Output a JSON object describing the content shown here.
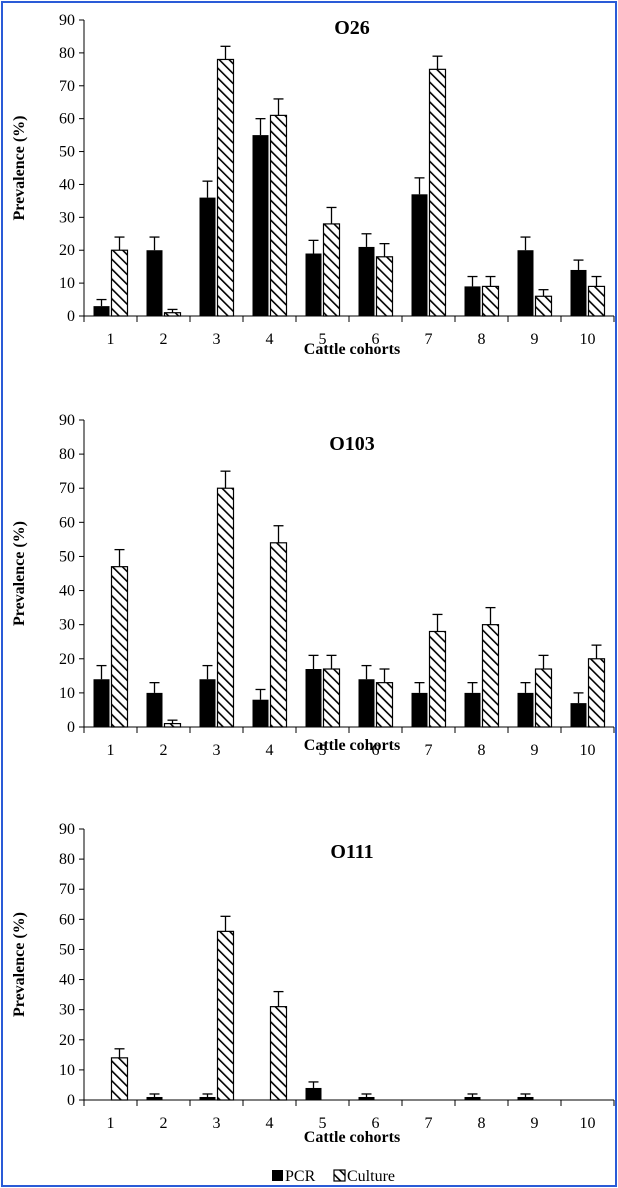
{
  "colors": {
    "frame": "#2a5bd7",
    "pcr_fill": "#000000",
    "culture_stroke": "#000000",
    "background": "#ffffff"
  },
  "legend": {
    "items": [
      {
        "label": "PCR",
        "pattern": "solid"
      },
      {
        "label": "Culture",
        "pattern": "hatched"
      }
    ]
  },
  "chart_data": [
    {
      "type": "bar",
      "title": "O26",
      "xlabel": "Cattle cohorts",
      "ylabel": "Prevalence (%)",
      "ylim": [
        0,
        90
      ],
      "yticks": [
        0,
        10,
        20,
        30,
        40,
        50,
        60,
        70,
        80,
        90
      ],
      "categories": [
        "1",
        "2",
        "3",
        "4",
        "5",
        "6",
        "7",
        "8",
        "9",
        "10"
      ],
      "series": [
        {
          "name": "PCR",
          "values": [
            3,
            20,
            36,
            55,
            19,
            21,
            37,
            9,
            20,
            14
          ],
          "errors": [
            2,
            4,
            5,
            5,
            4,
            4,
            5,
            3,
            4,
            3
          ]
        },
        {
          "name": "Culture",
          "values": [
            20,
            1,
            78,
            61,
            28,
            18,
            75,
            9,
            6,
            9
          ],
          "errors": [
            4,
            1,
            4,
            5,
            5,
            4,
            4,
            3,
            2,
            3
          ]
        }
      ]
    },
    {
      "type": "bar",
      "title": "O103",
      "xlabel": "Cattle cohorts",
      "ylabel": "Prevalence (%)",
      "ylim": [
        0,
        90
      ],
      "yticks": [
        0,
        10,
        20,
        30,
        40,
        50,
        60,
        70,
        80,
        90
      ],
      "categories": [
        "1",
        "2",
        "3",
        "4",
        "5",
        "6",
        "7",
        "8",
        "9",
        "10"
      ],
      "series": [
        {
          "name": "PCR",
          "values": [
            14,
            10,
            14,
            8,
            17,
            14,
            10,
            10,
            10,
            7
          ],
          "errors": [
            4,
            3,
            4,
            3,
            4,
            4,
            3,
            3,
            3,
            3
          ]
        },
        {
          "name": "Culture",
          "values": [
            47,
            1,
            70,
            54,
            17,
            13,
            28,
            30,
            17,
            20
          ],
          "errors": [
            5,
            1,
            5,
            5,
            4,
            4,
            5,
            5,
            4,
            4
          ]
        }
      ]
    },
    {
      "type": "bar",
      "title": "O111",
      "xlabel": "Cattle cohorts",
      "ylabel": "Prevalence (%)",
      "ylim": [
        0,
        90
      ],
      "yticks": [
        0,
        10,
        20,
        30,
        40,
        50,
        60,
        70,
        80,
        90
      ],
      "categories": [
        "1",
        "2",
        "3",
        "4",
        "5",
        "6",
        "7",
        "8",
        "9",
        "10"
      ],
      "series": [
        {
          "name": "PCR",
          "values": [
            0,
            1,
            1,
            0,
            4,
            1,
            0,
            1,
            1,
            0
          ],
          "errors": [
            0,
            1,
            1,
            0,
            2,
            1,
            0,
            1,
            1,
            0
          ]
        },
        {
          "name": "Culture",
          "values": [
            14,
            0,
            56,
            31,
            0,
            0,
            0,
            0,
            0,
            0
          ],
          "errors": [
            3,
            0,
            5,
            5,
            0,
            0,
            0,
            0,
            0,
            0
          ]
        }
      ]
    }
  ]
}
